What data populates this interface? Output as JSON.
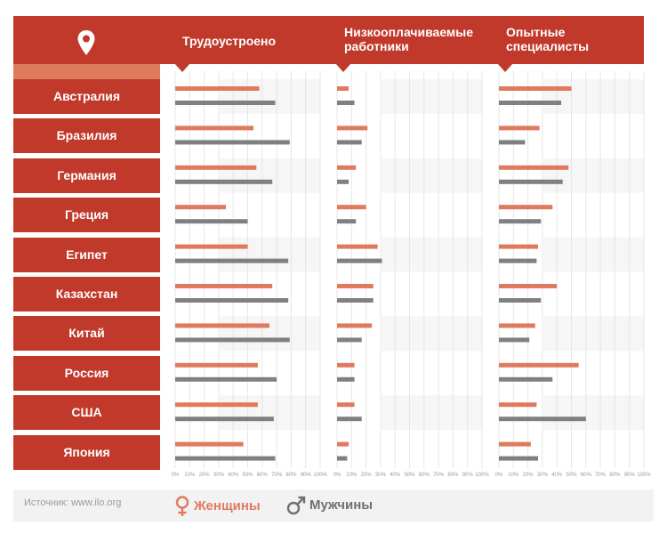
{
  "header": {
    "col1_title": "Трудоустроено",
    "col2_title_line1": "Низкооплачиваемые",
    "col2_title_line2": "работники",
    "col3_title_line1": "Опытные",
    "col3_title_line2": "специалисты"
  },
  "footer": {
    "source": "Источник: www.ilo.org",
    "legend_women": "Женщины",
    "legend_men": "Мужчины"
  },
  "colors": {
    "women": "#e07a5f",
    "men": "#808080",
    "accent": "#c0392b"
  },
  "icons": {
    "location": "map-pin-icon",
    "women": "female-symbol-icon",
    "men": "male-symbol-icon"
  },
  "chart_data": {
    "type": "bar",
    "orientation": "horizontal",
    "categories": [
      "Австралия",
      "Бразилия",
      "Германия",
      "Греция",
      "Египет",
      "Казахстан",
      "Китай",
      "Россия",
      "США",
      "Япония"
    ],
    "ticks": [
      "0%",
      "10%",
      "20%",
      "30%",
      "40%",
      "50%",
      "60%",
      "70%",
      "80%",
      "90%",
      "100%"
    ],
    "xlim": [
      0,
      100
    ],
    "panels": [
      {
        "title": "Трудоустроено",
        "series": [
          {
            "name": "Женщины",
            "values": [
              58,
              54,
              56,
              35,
              50,
              67,
              65,
              57,
              57,
              47
            ]
          },
          {
            "name": "Мужчины",
            "values": [
              69,
              79,
              67,
              50,
              78,
              78,
              79,
              70,
              68,
              69
            ]
          }
        ]
      },
      {
        "title": "Низкооплачиваемые работники",
        "series": [
          {
            "name": "Женщины",
            "values": [
              8,
              21,
              13,
              20,
              28,
              25,
              24,
              12,
              12,
              8
            ]
          },
          {
            "name": "Мужчины",
            "values": [
              12,
              17,
              8,
              13,
              31,
              25,
              17,
              12,
              17,
              7
            ]
          }
        ]
      },
      {
        "title": "Опытные специалисты",
        "series": [
          {
            "name": "Женщины",
            "values": [
              50,
              28,
              48,
              37,
              27,
              40,
              25,
              55,
              26,
              22
            ]
          },
          {
            "name": "Мужчины",
            "values": [
              43,
              18,
              44,
              29,
              26,
              29,
              21,
              37,
              60,
              27
            ]
          }
        ]
      }
    ]
  }
}
